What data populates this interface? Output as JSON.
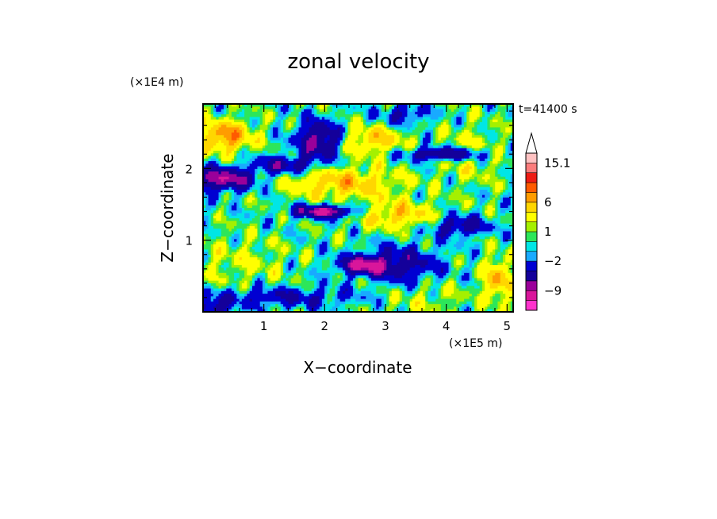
{
  "chart_data": {
    "type": "heatmap",
    "title": "zonal velocity",
    "time_label": "t=41400 s",
    "xlabel": "X−coordinate",
    "ylabel": "Z−coordinate",
    "x_scale_label": "(×1E5 m)",
    "y_scale_label": "(×1E4 m)",
    "xlim": [
      0,
      5.1
    ],
    "ylim": [
      0,
      2.9
    ],
    "x_ticks": [
      "1",
      "2",
      "3",
      "4",
      "5"
    ],
    "x_tick_values": [
      1,
      2,
      3,
      4,
      5
    ],
    "y_ticks": [
      "1",
      "2"
    ],
    "y_tick_values": [
      1,
      2
    ],
    "colorbar": {
      "bounds": [
        -15,
        -12,
        -9,
        -7,
        -4,
        -2,
        -1,
        0,
        1,
        2,
        4,
        6,
        8,
        10,
        12.5,
        15.1
      ],
      "colors": [
        "#ff33cc",
        "#d9169b",
        "#9a009a",
        "#14009a",
        "#0000d2",
        "#19aaff",
        "#00e6e6",
        "#2de65a",
        "#a5f000",
        "#ffff00",
        "#ffd600",
        "#ff9c00",
        "#ff5a00",
        "#ee1c14",
        "#fc7c7c",
        "#ffc2c2"
      ],
      "labels": [
        {
          "value": 15.1,
          "text": "15.1"
        },
        {
          "value": 6,
          "text": "6"
        },
        {
          "value": 1,
          "text": "1"
        },
        {
          "value": -2,
          "text": "−2"
        },
        {
          "value": -9,
          "text": "−9"
        }
      ],
      "extend": "max"
    }
  }
}
